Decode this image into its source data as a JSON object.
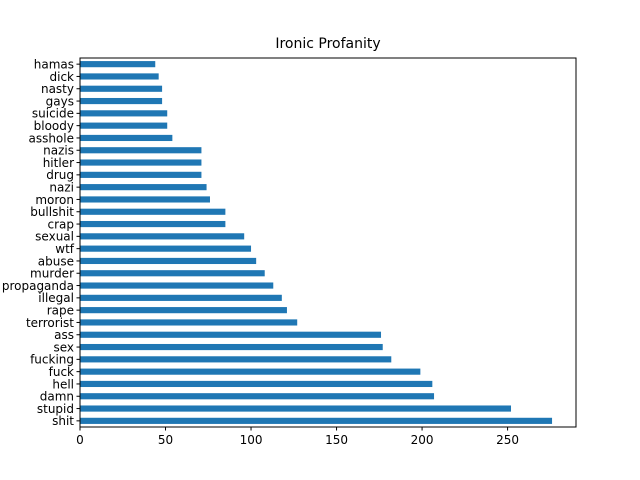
{
  "chart_data": {
    "type": "bar",
    "orientation": "horizontal",
    "title": "Ironic Profanity",
    "xlabel": "",
    "ylabel": "",
    "bar_color": "#1f77b4",
    "xlim": [
      0,
      290
    ],
    "xticks": [
      0,
      50,
      100,
      150,
      200,
      250
    ],
    "grid": false,
    "categories": [
      "shit",
      "stupid",
      "damn",
      "hell",
      "fuck",
      "fucking",
      "sex",
      "ass",
      "terrorist",
      "rape",
      "illegal",
      "propaganda",
      "murder",
      "abuse",
      "wtf",
      "sexual",
      "crap",
      "bullshit",
      "moron",
      "nazi",
      "drug",
      "hitler",
      "nazis",
      "asshole",
      "bloody",
      "suicide",
      "gays",
      "nasty",
      "dick",
      "hamas"
    ],
    "values": [
      276,
      252,
      207,
      206,
      199,
      182,
      177,
      176,
      127,
      121,
      118,
      113,
      108,
      103,
      100,
      96,
      85,
      85,
      76,
      74,
      71,
      71,
      71,
      54,
      51,
      51,
      48,
      48,
      46,
      44
    ]
  }
}
